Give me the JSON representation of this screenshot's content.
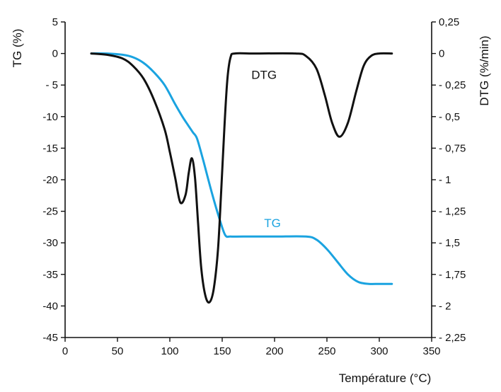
{
  "chart_data": {
    "type": "line",
    "title": "",
    "xlabel": "Température (°C)",
    "ylabel_left": "TG (%)",
    "ylabel_right": "DTG (%/min)",
    "xlim": [
      0,
      350
    ],
    "ylim_left": [
      -45,
      5
    ],
    "ylim_right": [
      -2.25,
      0.25
    ],
    "x_ticks": [
      0,
      50,
      100,
      150,
      200,
      250,
      300,
      350
    ],
    "x_tick_labels": [
      "0",
      "50",
      "100",
      "150",
      "200",
      "250",
      "300",
      "350"
    ],
    "y_left_ticks": [
      5,
      0,
      -5,
      -10,
      -15,
      -20,
      -25,
      -30,
      -35,
      -40,
      -45
    ],
    "y_left_tick_labels": [
      "5",
      "0",
      "- 5",
      "-10",
      "-15",
      "-20",
      "-25",
      "-30",
      "-35",
      "-40",
      "-45"
    ],
    "y_right_ticks": [
      0.25,
      0,
      -0.25,
      -0.5,
      -0.75,
      -1,
      -1.25,
      -1.5,
      -1.75,
      -2,
      -2.25
    ],
    "y_right_tick_labels": [
      "0,25",
      "0",
      "- 0,25",
      "- 0,5",
      "- 0,75",
      "- 1",
      "- 1,25",
      "- 1,5",
      "- 1,75",
      "- 2",
      "- 2,25"
    ],
    "grid": false,
    "series": [
      {
        "name": "TG",
        "axis": "left",
        "color": "#1aa3e0",
        "x": [
          25,
          40,
          55,
          65,
          75,
          85,
          95,
          105,
          112,
          118,
          122,
          126,
          132,
          140,
          148,
          153,
          158,
          170,
          200,
          230,
          240,
          250,
          260,
          270,
          280,
          290,
          300,
          312
        ],
        "y": [
          0,
          0,
          -0.2,
          -0.6,
          -1.5,
          -3,
          -5,
          -8,
          -10,
          -11.5,
          -12.5,
          -13.5,
          -17,
          -22,
          -26.5,
          -28.8,
          -29,
          -29,
          -29,
          -29,
          -29.5,
          -31,
          -33,
          -35,
          -36.2,
          -36.5,
          -36.5,
          -36.5
        ]
      },
      {
        "name": "DTG",
        "axis": "right",
        "color": "#111111",
        "x": [
          25,
          40,
          55,
          65,
          75,
          85,
          95,
          100,
          105,
          110,
          115,
          118,
          121,
          124,
          127,
          130,
          134,
          138,
          142,
          146,
          149,
          152,
          155,
          158,
          162,
          180,
          220,
          230,
          240,
          248,
          255,
          262,
          270,
          278,
          285,
          292,
          300,
          312
        ],
        "y": [
          0,
          -0.01,
          -0.04,
          -0.1,
          -0.2,
          -0.37,
          -0.6,
          -0.78,
          -0.98,
          -1.18,
          -1.12,
          -0.95,
          -0.83,
          -0.98,
          -1.35,
          -1.7,
          -1.92,
          -1.97,
          -1.86,
          -1.55,
          -1.1,
          -0.6,
          -0.2,
          -0.03,
          0,
          0,
          0,
          -0.02,
          -0.12,
          -0.33,
          -0.55,
          -0.66,
          -0.55,
          -0.3,
          -0.1,
          -0.02,
          0,
          0
        ]
      }
    ],
    "annotations": [
      {
        "text": "DTG",
        "x": 190,
        "y_left": -4
      },
      {
        "text": "TG",
        "x": 198,
        "y_left": -27.5
      }
    ]
  }
}
